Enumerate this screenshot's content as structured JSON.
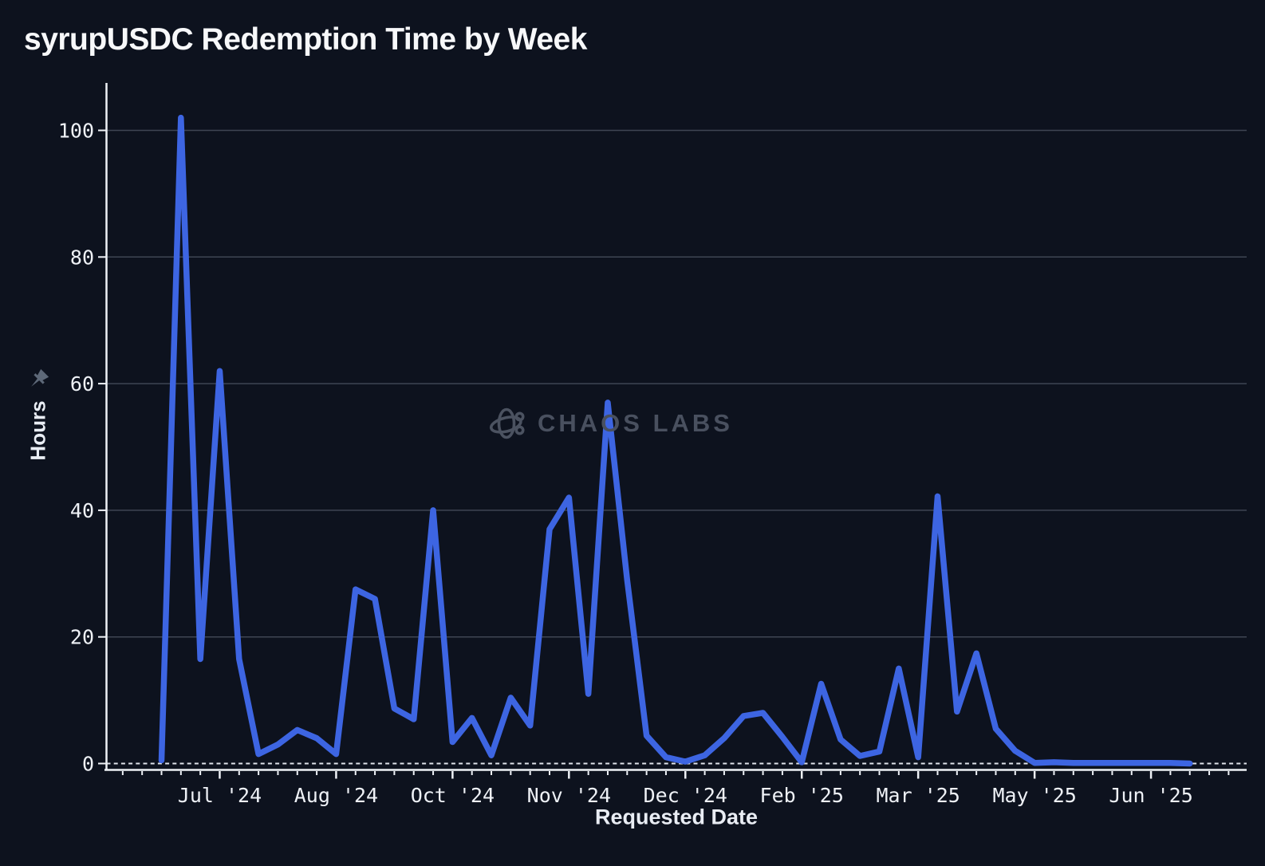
{
  "chart": {
    "title": "syrupUSDC Redemption Time by Week",
    "x_axis_title": "Requested Date",
    "y_axis_title": "Hours"
  },
  "watermark": {
    "text": "CHAOS LABS",
    "logo_icon": "chaos-labs-logo-icon"
  },
  "icons": {
    "pin": "pushpin-icon"
  },
  "colors": {
    "background": "#0d121e",
    "line": "#3d65e2",
    "grid": "#3e4553",
    "axis": "#eef1f6",
    "tick_label": "#eef1f6",
    "zero_dash": "#dfe3ea",
    "watermark": "#4b5260",
    "pin": "#5d6878"
  },
  "chart_data": {
    "type": "line",
    "title": "syrupUSDC Redemption Time by Week",
    "xlabel": "Requested Date",
    "ylabel": "Hours",
    "ylim": [
      0,
      105
    ],
    "y_ticks": [
      0,
      20,
      40,
      60,
      80,
      100
    ],
    "grid": "horizontal-only",
    "legend": "none",
    "zero_reference_line": "dashed-white",
    "x_unit": "week",
    "minor_tick_interval_weeks": 1,
    "x_tick_labels": [
      "Jul '24",
      "Aug '24",
      "Oct '24",
      "Nov '24",
      "Dec '24",
      "Feb '25",
      "Mar '25",
      "May '25",
      "Jun '25"
    ],
    "x_tick_indices": [
      3,
      9,
      15,
      21,
      27,
      33,
      39,
      45,
      51
    ],
    "series": [
      {
        "name": "Redemption time",
        "unit": "hours",
        "values": [
          0.5,
          102,
          16.5,
          62,
          16.5,
          1.5,
          3,
          5.3,
          4,
          1.5,
          27.5,
          26,
          8.7,
          7,
          40,
          3.4,
          7.2,
          1.3,
          10.4,
          6,
          37,
          42,
          11,
          57,
          29,
          4.4,
          1,
          0.3,
          1.3,
          4,
          7.5,
          8,
          4.2,
          0.2,
          12.6,
          3.8,
          1.2,
          1.9,
          15,
          1,
          42.2,
          8.2,
          17.4,
          5.5,
          2,
          0.1,
          0.2,
          0.1,
          0.1,
          0.1,
          0.1,
          0.1,
          0.1,
          0
        ]
      }
    ]
  }
}
